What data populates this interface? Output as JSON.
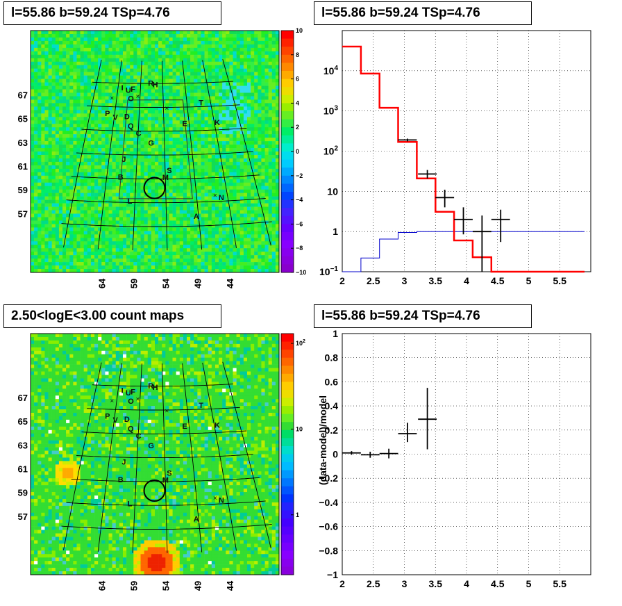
{
  "panels": {
    "top_left_title": "l=55.86 b=59.24 TSp=4.76",
    "top_right_title": "l=55.86 b=59.24 TSp=4.76",
    "bottom_left_title": "2.50<logE<3.00 count maps",
    "bottom_right_title": "l=55.86 b=59.24 TSp=4.76"
  },
  "colors": {
    "data": "#000000",
    "model": "#ff0000",
    "component": "#0000cc",
    "map_base": "#33dd33"
  },
  "chart_data": [
    {
      "type": "heatmap",
      "name": "residual-map",
      "x_ticks": [
        "64",
        "59",
        "54",
        "49",
        "44"
      ],
      "y_ticks": [
        "67",
        "65",
        "63",
        "61",
        "59",
        "57"
      ],
      "colorbar_ticks": [
        "10",
        "8",
        "6",
        "4",
        "2",
        "0",
        "−2",
        "−4",
        "−6",
        "−8",
        "−10"
      ],
      "colorbar_range": [
        -10,
        10
      ],
      "source_labels": [
        {
          "t": "I",
          "l": 63.0,
          "b": 67.4
        },
        {
          "t": "U",
          "l": 61.6,
          "b": 67.2
        },
        {
          "t": "F",
          "l": 60.6,
          "b": 67.3
        },
        {
          "t": "R",
          "l": 56.7,
          "b": 67.8
        },
        {
          "t": "H",
          "l": 55.7,
          "b": 67.7
        },
        {
          "t": "O",
          "l": 60.9,
          "b": 66.5
        },
        {
          "t": "T",
          "l": 46.1,
          "b": 66.1
        },
        {
          "t": "P",
          "l": 65.4,
          "b": 65.2
        },
        {
          "t": "V",
          "l": 63.7,
          "b": 64.9
        },
        {
          "t": "D",
          "l": 61.4,
          "b": 65.0
        },
        {
          "t": "E",
          "l": 49.9,
          "b": 64.4
        },
        {
          "t": "K",
          "l": 43.5,
          "b": 64.4
        },
        {
          "t": "Q",
          "l": 60.5,
          "b": 64.2
        },
        {
          "t": "C",
          "l": 58.9,
          "b": 63.6
        },
        {
          "t": "G",
          "l": 56.5,
          "b": 62.8
        },
        {
          "t": "J",
          "l": 61.3,
          "b": 61.4
        },
        {
          "t": "S",
          "l": 53.3,
          "b": 60.5
        },
        {
          "t": "B",
          "l": 61.6,
          "b": 59.9
        },
        {
          "t": "M",
          "l": 54.0,
          "b": 59.9
        },
        {
          "t": "N",
          "l": 45.1,
          "b": 58.1
        },
        {
          "t": "L",
          "l": 59.8,
          "b": 57.9
        },
        {
          "t": "A",
          "l": 49.4,
          "b": 56.6
        }
      ],
      "circle": {
        "l": 55.86,
        "b": 59.24
      }
    },
    {
      "type": "line",
      "name": "spectrum",
      "xlim": [
        2,
        6
      ],
      "ylim": [
        0.1,
        100000
      ],
      "yscale": "log",
      "x_ticks": [
        "2",
        "2.5",
        "3",
        "3.5",
        "4",
        "4.5",
        "5",
        "5.5"
      ],
      "y_ticks": [
        {
          "v": 0.1,
          "t": "10",
          "sup": "−1"
        },
        {
          "v": 1,
          "t": "1"
        },
        {
          "v": 10,
          "t": "10"
        },
        {
          "v": 100,
          "t": "10",
          "sup": "2"
        },
        {
          "v": 1000,
          "t": "10",
          "sup": "3"
        },
        {
          "v": 10000,
          "t": "10",
          "sup": "4"
        }
      ],
      "grid": true,
      "bin_edges": [
        2.0,
        2.3,
        2.6,
        2.9,
        3.2,
        3.5,
        3.8,
        4.1,
        4.4,
        4.7,
        5.0,
        5.3,
        5.6,
        5.9
      ],
      "series": [
        {
          "role": "model",
          "values": [
            40000,
            8500,
            1200,
            170,
            21,
            3.1,
            0.6,
            0.23,
            0.1,
            0.1,
            0.1,
            0.1,
            0.1
          ]
        },
        {
          "role": "component",
          "values": [
            0.1,
            0.22,
            0.65,
            0.95,
            1.0,
            1.0,
            1.0,
            1.0,
            1.0,
            1.0,
            1.0,
            1.0,
            1.0
          ]
        },
        {
          "role": "data",
          "points": [
            {
              "x": 3.05,
              "y": 190,
              "xerr": 0.15,
              "ylo": 175,
              "yhi": 205
            },
            {
              "x": 3.37,
              "y": 27,
              "xerr": 0.15,
              "ylo": 21,
              "yhi": 34
            },
            {
              "x": 3.65,
              "y": 7,
              "xerr": 0.15,
              "ylo": 4,
              "yhi": 11
            },
            {
              "x": 3.95,
              "y": 2,
              "xerr": 0.15,
              "ylo": 0.85,
              "yhi": 4
            },
            {
              "x": 4.25,
              "y": 1.0,
              "xerr": 0.15,
              "ylo": 0.1,
              "yhi": 2.5
            },
            {
              "x": 4.55,
              "y": 2,
              "xerr": 0.15,
              "ylo": 0.55,
              "yhi": 3.5
            }
          ]
        }
      ]
    },
    {
      "type": "heatmap",
      "name": "count-map",
      "x_ticks": [
        "64",
        "59",
        "54",
        "49",
        "44"
      ],
      "y_ticks": [
        "67",
        "65",
        "63",
        "61",
        "59",
        "57"
      ],
      "colorbar_ticks": [
        {
          "v": 100,
          "t": "10",
          "sup": "2"
        },
        {
          "v": 10,
          "t": "10"
        },
        {
          "v": 1,
          "t": "1"
        }
      ],
      "colorbar_range": [
        0.2,
        130
      ],
      "source_labels": [
        {
          "t": "I",
          "l": 63.0,
          "b": 67.4
        },
        {
          "t": "U",
          "l": 61.6,
          "b": 67.2
        },
        {
          "t": "F",
          "l": 60.6,
          "b": 67.3
        },
        {
          "t": "R",
          "l": 56.7,
          "b": 67.8
        },
        {
          "t": "H",
          "l": 55.7,
          "b": 67.7
        },
        {
          "t": "O",
          "l": 60.9,
          "b": 66.5
        },
        {
          "t": "T",
          "l": 46.1,
          "b": 66.1
        },
        {
          "t": "P",
          "l": 65.4,
          "b": 65.2
        },
        {
          "t": "V",
          "l": 63.7,
          "b": 64.9
        },
        {
          "t": "D",
          "l": 61.4,
          "b": 65.0
        },
        {
          "t": "E",
          "l": 49.9,
          "b": 64.4
        },
        {
          "t": "K",
          "l": 43.5,
          "b": 64.4
        },
        {
          "t": "Q",
          "l": 60.5,
          "b": 64.2
        },
        {
          "t": "C",
          "l": 58.9,
          "b": 63.6
        },
        {
          "t": "G",
          "l": 56.5,
          "b": 62.8
        },
        {
          "t": "J",
          "l": 61.3,
          "b": 61.4
        },
        {
          "t": "S",
          "l": 53.3,
          "b": 60.5
        },
        {
          "t": "B",
          "l": 61.6,
          "b": 59.9
        },
        {
          "t": "M",
          "l": 54.0,
          "b": 59.9
        },
        {
          "t": "N",
          "l": 45.1,
          "b": 58.1
        },
        {
          "t": "L",
          "l": 59.8,
          "b": 57.9
        },
        {
          "t": "A",
          "l": 49.4,
          "b": 56.6
        }
      ],
      "circle": {
        "l": 55.86,
        "b": 59.24
      }
    },
    {
      "type": "scatter",
      "name": "residuals",
      "xlim": [
        2,
        6
      ],
      "ylim": [
        -1,
        1
      ],
      "ylabel": "(data-model)/model",
      "x_ticks": [
        "2",
        "2.5",
        "3",
        "3.5",
        "4",
        "4.5",
        "5",
        "5.5"
      ],
      "y_ticks": [
        "1",
        "0.8",
        "0.6",
        "0.4",
        "0.2",
        "0",
        "−0.2",
        "−0.4",
        "−0.6",
        "−0.8",
        "−1"
      ],
      "grid": true,
      "points": [
        {
          "x": 2.15,
          "y": 0.01,
          "xerr": 0.15,
          "ylo": -0.005,
          "yhi": 0.025
        },
        {
          "x": 2.45,
          "y": -0.005,
          "xerr": 0.15,
          "ylo": -0.03,
          "yhi": 0.02
        },
        {
          "x": 2.75,
          "y": 0.005,
          "xerr": 0.15,
          "ylo": -0.035,
          "yhi": 0.045
        },
        {
          "x": 3.05,
          "y": 0.17,
          "xerr": 0.15,
          "ylo": 0.1,
          "yhi": 0.26
        },
        {
          "x": 3.37,
          "y": 0.29,
          "xerr": 0.15,
          "ylo": 0.04,
          "yhi": 0.55
        }
      ]
    }
  ]
}
